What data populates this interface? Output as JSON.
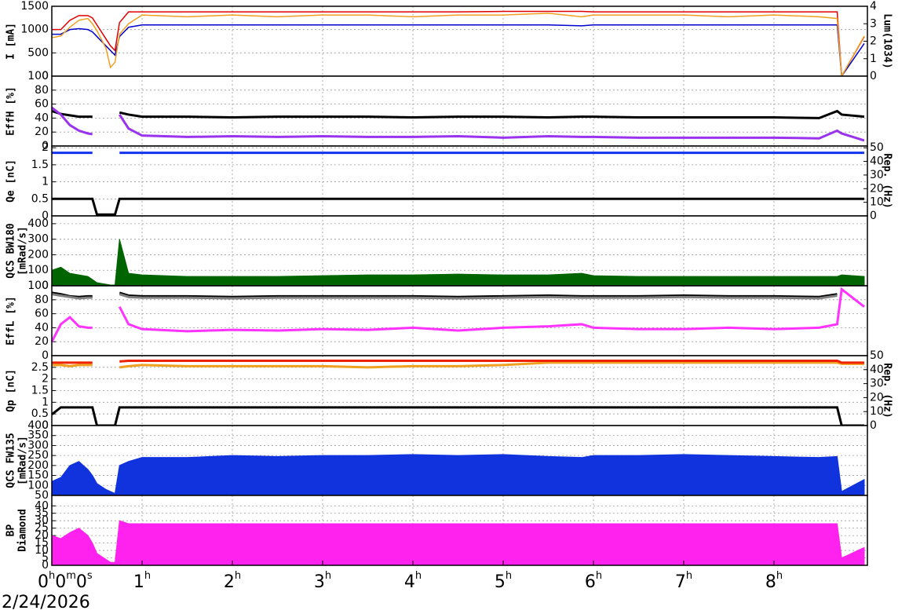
{
  "time_axis": {
    "xlim": [
      0,
      9.035
    ],
    "xticks": [
      {
        "value": 0,
        "label": "0h0m0s"
      },
      {
        "value": 1,
        "label": "1h"
      },
      {
        "value": 2,
        "label": "2h"
      },
      {
        "value": 3,
        "label": "3h"
      },
      {
        "value": 4,
        "label": "4h"
      },
      {
        "value": 5,
        "label": "5h"
      },
      {
        "value": 6,
        "label": "6h"
      },
      {
        "value": 7,
        "label": "7h"
      },
      {
        "value": 8,
        "label": "8h"
      }
    ],
    "grid": true
  },
  "date": "2/24/2026",
  "chart_data": [
    {
      "type": "line",
      "ylabel": [
        "I [mA]"
      ],
      "ylim": [
        0,
        1500
      ],
      "yticks": [
        0,
        500,
        1000,
        1500
      ],
      "y2label": [
        "Lum(1034)"
      ],
      "y2lim": [
        0,
        4
      ],
      "y2ticks": [
        0,
        1,
        2,
        3,
        4
      ],
      "grid": true,
      "x": [
        0,
        0.1,
        0.2,
        0.3,
        0.4,
        0.45,
        0.5,
        0.6,
        0.65,
        0.7,
        0.75,
        0.85,
        1,
        1.5,
        2,
        2.5,
        3,
        3.5,
        4,
        4.5,
        5,
        5.5,
        5.87,
        6,
        6.5,
        7,
        7.5,
        8,
        8.5,
        8.7,
        8.75,
        9
      ],
      "series": [
        {
          "color": "#e00000",
          "values": [
            1000,
            1000,
            1200,
            1300,
            1300,
            1250,
            1100,
            800,
            650,
            550,
            1150,
            1380,
            1380,
            1380,
            1380,
            1380,
            1380,
            1380,
            1380,
            1380,
            1390,
            1390,
            1390,
            1380,
            1380,
            1380,
            1380,
            1380,
            1380,
            1380,
            0,
            850
          ]
        },
        {
          "color": "#0000cc",
          "values": [
            900,
            900,
            1000,
            1020,
            1000,
            950,
            850,
            650,
            550,
            450,
            850,
            1050,
            1100,
            1100,
            1100,
            1100,
            1100,
            1100,
            1100,
            1100,
            1100,
            1100,
            1080,
            1100,
            1100,
            1100,
            1100,
            1100,
            1100,
            1100,
            0,
            700
          ]
        },
        {
          "color": "#f0a020",
          "axis": "y2",
          "values": [
            2.2,
            2.3,
            2.8,
            3.2,
            3.3,
            3.0,
            2.6,
            1.6,
            0.5,
            0.8,
            2.4,
            3.0,
            3.5,
            3.4,
            3.5,
            3.4,
            3.5,
            3.5,
            3.4,
            3.5,
            3.5,
            3.6,
            3.4,
            3.5,
            3.5,
            3.5,
            3.4,
            3.5,
            3.4,
            3.3,
            0,
            2.3
          ]
        }
      ]
    },
    {
      "type": "scatter",
      "ylabel": [
        "EffH [%]"
      ],
      "ylim": [
        0,
        100
      ],
      "yticks": [
        0,
        20,
        40,
        60,
        80,
        100
      ],
      "grid": true,
      "x": [
        0,
        0.1,
        0.2,
        0.3,
        0.4,
        0.45,
        0.5,
        0.6,
        0.65,
        0.7,
        0.75,
        0.85,
        1,
        1.5,
        2,
        2.5,
        3,
        3.5,
        4,
        4.5,
        5,
        5.5,
        5.87,
        6,
        6.5,
        7,
        7.5,
        8,
        8.5,
        8.7,
        8.75,
        9
      ],
      "series": [
        {
          "color": "#000000",
          "values": [
            50,
            46,
            44,
            42,
            42,
            42,
            null,
            null,
            null,
            null,
            48,
            45,
            42,
            42,
            41,
            42,
            42,
            42,
            41,
            42,
            42,
            41,
            42,
            42,
            41,
            41,
            41,
            41,
            40,
            50,
            45,
            42
          ]
        },
        {
          "color": "#9933ee",
          "values": [
            55,
            45,
            30,
            22,
            18,
            17,
            null,
            null,
            null,
            null,
            45,
            25,
            15,
            13,
            14,
            13,
            14,
            13,
            13,
            14,
            12,
            14,
            13,
            13,
            12,
            12,
            12,
            12,
            11,
            22,
            18,
            8
          ]
        }
      ]
    },
    {
      "type": "scatter",
      "ylabel": [
        "Qe [nC]"
      ],
      "ylim": [
        0,
        2.05
      ],
      "yticks": [
        0,
        0.5,
        1,
        1.5,
        2
      ],
      "y2label": [
        "Rep. (Hz)"
      ],
      "y2lim": [
        0,
        51.25
      ],
      "y2ticks": [
        0,
        10,
        20,
        30,
        40,
        50
      ],
      "grid": true,
      "x": [
        0,
        0.1,
        0.2,
        0.3,
        0.4,
        0.45,
        0.5,
        0.6,
        0.65,
        0.7,
        0.75,
        0.85,
        1,
        1.5,
        2,
        2.5,
        3,
        3.5,
        4,
        4.5,
        5,
        5.5,
        5.87,
        6,
        6.5,
        7,
        7.5,
        8,
        8.5,
        8.7,
        8.75,
        9
      ],
      "series": [
        {
          "color": "#1133ee",
          "values": [
            1.85,
            1.85,
            1.85,
            1.85,
            1.85,
            1.85,
            null,
            null,
            null,
            null,
            1.85,
            1.85,
            1.85,
            1.85,
            1.85,
            1.85,
            1.85,
            1.85,
            1.85,
            1.85,
            1.85,
            1.85,
            1.85,
            1.85,
            1.85,
            1.85,
            1.85,
            1.85,
            1.85,
            1.85,
            1.85,
            1.85
          ]
        },
        {
          "color": "#000000",
          "axis": "y2",
          "values": [
            12.5,
            12.5,
            12.5,
            12.5,
            12.5,
            12.5,
            1,
            1,
            1,
            1,
            12.5,
            12.5,
            12.5,
            12.5,
            12.5,
            12.5,
            12.5,
            12.5,
            12.5,
            12.5,
            12.5,
            12.5,
            12.5,
            12.5,
            12.5,
            12.5,
            12.5,
            12.5,
            12.5,
            12.5,
            12.5,
            12.5
          ]
        }
      ]
    },
    {
      "type": "area",
      "ylabel": [
        "QCS BW180",
        "[mRad/s]"
      ],
      "ylim": [
        0,
        450
      ],
      "yticks": [
        0,
        100,
        200,
        300,
        400
      ],
      "grid": true,
      "x": [
        0,
        0.1,
        0.2,
        0.3,
        0.4,
        0.45,
        0.5,
        0.6,
        0.65,
        0.7,
        0.75,
        0.85,
        1,
        1.5,
        2,
        2.5,
        3,
        3.5,
        4,
        4.5,
        5,
        5.5,
        5.87,
        6,
        6.5,
        7,
        7.5,
        8,
        8.5,
        8.7,
        8.75,
        9
      ],
      "series": [
        {
          "color": "#006400",
          "values": [
            100,
            120,
            80,
            70,
            60,
            40,
            20,
            10,
            5,
            5,
            300,
            80,
            70,
            60,
            60,
            60,
            65,
            70,
            70,
            75,
            70,
            70,
            80,
            65,
            60,
            60,
            60,
            60,
            60,
            60,
            70,
            60
          ]
        }
      ]
    },
    {
      "type": "scatter",
      "ylabel": [
        "EffL [%]"
      ],
      "ylim": [
        0,
        100
      ],
      "yticks": [
        0,
        20,
        40,
        60,
        80,
        100
      ],
      "grid": true,
      "x": [
        0,
        0.1,
        0.2,
        0.3,
        0.4,
        0.45,
        0.5,
        0.6,
        0.65,
        0.7,
        0.75,
        0.85,
        1,
        1.5,
        2,
        2.5,
        3,
        3.5,
        4,
        4.5,
        5,
        5.5,
        5.87,
        6,
        6.5,
        7,
        7.5,
        8,
        8.5,
        8.7,
        8.75,
        9
      ],
      "series": [
        {
          "color": "#000000",
          "values": [
            90,
            88,
            85,
            84,
            85,
            85,
            null,
            null,
            null,
            null,
            90,
            86,
            85,
            85,
            84,
            85,
            85,
            85,
            85,
            84,
            85,
            86,
            85,
            85,
            85,
            86,
            85,
            85,
            84,
            88,
            null,
            null
          ]
        },
        {
          "color": "#808080",
          "values": [
            88,
            86,
            84,
            82,
            83,
            83,
            null,
            null,
            null,
            null,
            88,
            84,
            83,
            83,
            82,
            83,
            83,
            83,
            83,
            82,
            83,
            84,
            83,
            83,
            83,
            84,
            83,
            83,
            82,
            86,
            null,
            null
          ]
        },
        {
          "color": "#ff33ff",
          "values": [
            20,
            45,
            55,
            42,
            40,
            40,
            null,
            null,
            null,
            null,
            70,
            45,
            38,
            35,
            37,
            36,
            38,
            37,
            40,
            36,
            40,
            42,
            45,
            40,
            38,
            38,
            40,
            38,
            40,
            45,
            95,
            70
          ]
        }
      ]
    },
    {
      "type": "scatter",
      "ylabel": [
        "Qp [nC]"
      ],
      "ylim": [
        0,
        3
      ],
      "yticks": [
        0,
        0.5,
        1,
        1.5,
        2,
        2.5
      ],
      "y2label": [
        "Rep. (Hz)"
      ],
      "y2lim": [
        0,
        50
      ],
      "y2ticks": [
        0,
        10,
        20,
        30,
        40,
        50
      ],
      "grid": true,
      "x": [
        0,
        0.1,
        0.2,
        0.3,
        0.4,
        0.45,
        0.5,
        0.6,
        0.65,
        0.7,
        0.75,
        0.85,
        1,
        1.5,
        2,
        2.5,
        3,
        3.5,
        4,
        4.5,
        5,
        5.5,
        5.87,
        6,
        6.5,
        7,
        7.5,
        8,
        8.5,
        8.7,
        8.75,
        9
      ],
      "series": [
        {
          "color": "#f0a020",
          "values": [
            2.6,
            2.6,
            2.55,
            2.6,
            2.6,
            2.6,
            null,
            null,
            null,
            null,
            2.5,
            2.55,
            2.6,
            2.55,
            2.55,
            2.55,
            2.55,
            2.5,
            2.55,
            2.55,
            2.6,
            2.7,
            2.7,
            2.7,
            2.7,
            2.7,
            2.7,
            2.7,
            2.7,
            2.7,
            2.65,
            2.65
          ]
        },
        {
          "color": "#ee2200",
          "values": [
            2.7,
            2.7,
            2.7,
            2.7,
            2.7,
            2.7,
            null,
            null,
            null,
            null,
            2.75,
            2.78,
            2.78,
            2.78,
            2.78,
            2.78,
            2.78,
            2.78,
            2.78,
            2.78,
            2.78,
            2.78,
            2.78,
            2.78,
            2.78,
            2.78,
            2.78,
            2.78,
            2.78,
            2.78,
            2.7,
            2.7
          ]
        },
        {
          "color": "#000000",
          "axis": "y2",
          "values": [
            8,
            13,
            13,
            13,
            13,
            13,
            0,
            0,
            0,
            0,
            13,
            13,
            13,
            13,
            13,
            13,
            13,
            13,
            13,
            13,
            13,
            13,
            13,
            13,
            13,
            13,
            13,
            13,
            13,
            13,
            0,
            0
          ]
        }
      ]
    },
    {
      "type": "area",
      "ylabel": [
        "QCS FW135",
        "[mRad/s]"
      ],
      "ylim": [
        50,
        400
      ],
      "yticks": [
        50,
        100,
        150,
        200,
        250,
        300,
        350,
        400
      ],
      "grid": true,
      "x": [
        0,
        0.1,
        0.2,
        0.3,
        0.4,
        0.45,
        0.5,
        0.6,
        0.65,
        0.7,
        0.75,
        0.85,
        1,
        1.5,
        2,
        2.5,
        3,
        3.5,
        4,
        4.5,
        5,
        5.5,
        5.87,
        6,
        6.5,
        7,
        7.5,
        8,
        8.5,
        8.7,
        8.75,
        9
      ],
      "series": [
        {
          "color": "#1133dd",
          "values": [
            120,
            140,
            200,
            220,
            180,
            150,
            110,
            80,
            70,
            60,
            200,
            220,
            240,
            240,
            250,
            245,
            250,
            250,
            255,
            250,
            255,
            245,
            240,
            250,
            250,
            255,
            250,
            245,
            240,
            245,
            70,
            130
          ]
        }
      ]
    },
    {
      "type": "area",
      "ylabel": [
        "BP",
        "Diamond"
      ],
      "ylim": [
        0,
        47
      ],
      "yticks": [
        0,
        5,
        10,
        15,
        20,
        25,
        30,
        35,
        40
      ],
      "grid": true,
      "x": [
        0,
        0.1,
        0.2,
        0.3,
        0.4,
        0.45,
        0.5,
        0.6,
        0.65,
        0.7,
        0.75,
        0.85,
        1,
        1.5,
        2,
        2.5,
        3,
        3.5,
        4,
        4.5,
        5,
        5.5,
        5.87,
        6,
        6.5,
        7,
        7.5,
        8,
        8.5,
        8.7,
        8.75,
        9
      ],
      "series": [
        {
          "color": "#ff22ee",
          "values": [
            20,
            18,
            22,
            25,
            20,
            15,
            8,
            4,
            2,
            2,
            30,
            28,
            28,
            28,
            28,
            28,
            28,
            28,
            28,
            28,
            28,
            28,
            28,
            28,
            28,
            28,
            28,
            28,
            28,
            28,
            5,
            12
          ]
        }
      ]
    }
  ]
}
